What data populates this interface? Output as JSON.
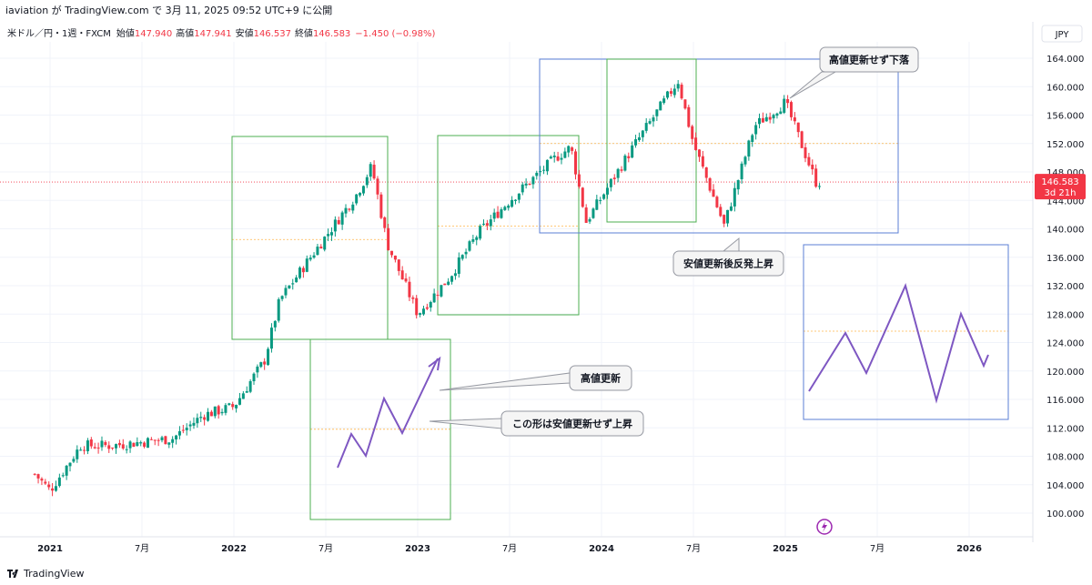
{
  "header": {
    "published": "iaviation が TradingView.com で 3月 11, 2025 09:52 UTC+9 に公開"
  },
  "legend": {
    "symbol": "米ドル／円・1週・FXCM",
    "open_label": "始値",
    "open": "147.940",
    "high_label": "高値",
    "high": "147.941",
    "low_label": "安値",
    "low": "146.537",
    "close_label": "終値",
    "close": "146.583",
    "change": "−1.450 (−0.98%)"
  },
  "price_scale": {
    "currency": "JPY",
    "ticks": [
      "164.000",
      "160.000",
      "156.000",
      "152.000",
      "148.000",
      "144.000",
      "140.000",
      "136.000",
      "132.000",
      "128.000",
      "124.000",
      "120.000",
      "116.000",
      "112.000",
      "108.000",
      "104.000",
      "100.000"
    ],
    "last_price": "146.583",
    "countdown": "3d 21h"
  },
  "time_scale": {
    "labels": [
      "2021",
      "7月",
      "2022",
      "7月",
      "2023",
      "7月",
      "2024",
      "7月",
      "2025",
      "7月",
      "2026"
    ]
  },
  "annotations": {
    "callout_1": "高値更新せず下落",
    "callout_2": "安値更新後反発上昇",
    "callout_3": "高値更新",
    "callout_4": "この形は安値更新せず上昇"
  },
  "footer": {
    "brand": "TradingView"
  },
  "colors": {
    "up": "#089981",
    "down": "#f23645",
    "box_green": "#4caf50",
    "box_blue": "#5b7fd6",
    "pattern_line": "#7e57c2",
    "mid_line": "#ff9800"
  },
  "chart_data": {
    "type": "candlestick",
    "title": "米ドル／円・1週・FXCM",
    "ylim": [
      98,
      166
    ],
    "series": [
      {
        "date": "2021-01",
        "close": 103.2
      },
      {
        "date": "2021-03",
        "close": 109.5
      },
      {
        "date": "2021-05",
        "close": 109.5
      },
      {
        "date": "2021-07",
        "close": 110.0
      },
      {
        "date": "2021-09",
        "close": 110.5
      },
      {
        "date": "2021-11",
        "close": 113.8
      },
      {
        "date": "2022-01",
        "close": 115.0
      },
      {
        "date": "2022-03",
        "close": 121.5
      },
      {
        "date": "2022-04",
        "close": 130.0
      },
      {
        "date": "2022-06",
        "close": 136.0
      },
      {
        "date": "2022-09",
        "close": 144.8
      },
      {
        "date": "2022-10",
        "close": 148.8
      },
      {
        "date": "2022-11",
        "close": 138.0
      },
      {
        "date": "2023-01",
        "close": 128.0
      },
      {
        "date": "2023-03",
        "close": 133.0
      },
      {
        "date": "2023-05",
        "close": 139.5
      },
      {
        "date": "2023-07",
        "close": 144.0
      },
      {
        "date": "2023-10",
        "close": 150.0
      },
      {
        "date": "2023-11",
        "close": 151.5
      },
      {
        "date": "2023-12",
        "close": 141.0
      },
      {
        "date": "2024-03",
        "close": 151.3
      },
      {
        "date": "2024-06",
        "close": 160.8
      },
      {
        "date": "2024-07",
        "close": 152.0
      },
      {
        "date": "2024-09",
        "close": 140.5
      },
      {
        "date": "2024-11",
        "close": 154.5
      },
      {
        "date": "2025-01",
        "close": 157.8
      },
      {
        "date": "2025-03",
        "close": 146.583
      }
    ]
  }
}
